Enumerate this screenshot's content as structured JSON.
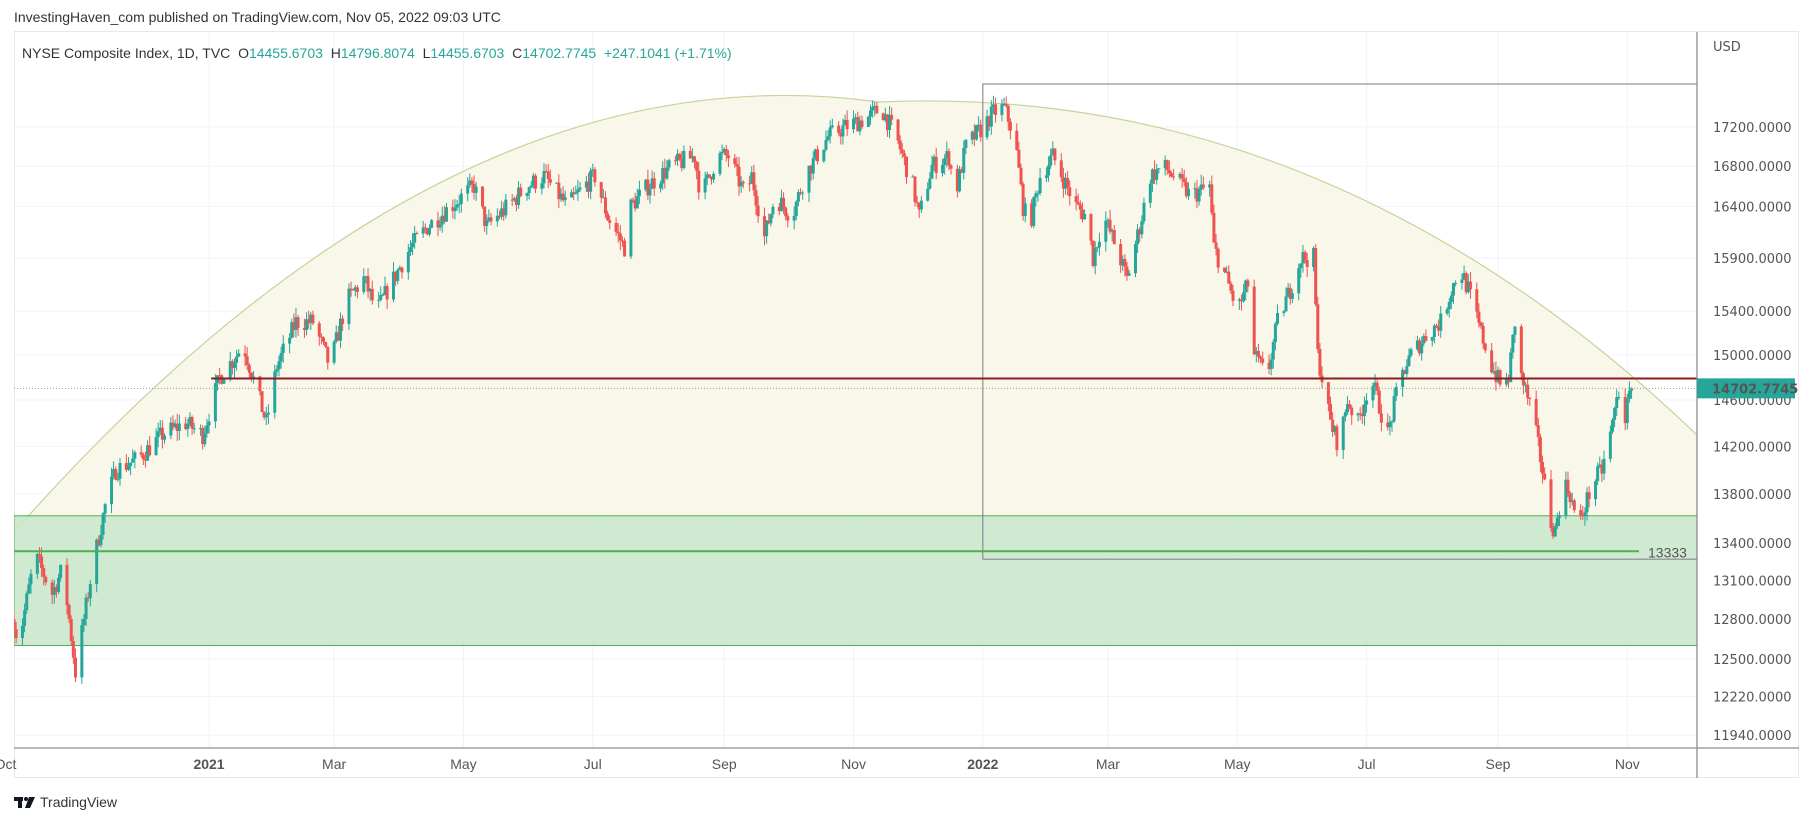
{
  "header": {
    "published": "InvestingHaven_com published on TradingView.com, Nov 05, 2022 09:03 UTC"
  },
  "legend": {
    "symbol": "NYSE Composite Index, 1D, TVC",
    "o_label": "O",
    "o": "14455.6703",
    "h_label": "H",
    "h": "14796.8074",
    "l_label": "L",
    "l": "14455.6703",
    "c_label": "C",
    "c": "14702.7745",
    "change": "+247.1041 (+1.71%)"
  },
  "footer": {
    "brand": "TradingView"
  },
  "colors": {
    "up": "#26a69a",
    "down": "#ef5350",
    "zone": "#c8e6c9",
    "zone_line": "#4caf50",
    "resistance": "#8b1e1e",
    "arc_fill": "#f8f7ea",
    "arc_line": "#c5d49a"
  },
  "chart_data": {
    "type": "candlestick",
    "title": "NYSE Composite Index, 1D, TVC",
    "currency": "USD",
    "x_unit": "trading days offset from 2020-10-01",
    "yscale": "log",
    "ylim": [
      11850,
      17750
    ],
    "y_ticks": [
      "17200.0000",
      "16800.0000",
      "16400.0000",
      "15900.0000",
      "15400.0000",
      "15000.0000",
      "14600.0000",
      "14200.0000",
      "13800.0000",
      "13400.0000",
      "13100.0000",
      "12800.0000",
      "12500.0000",
      "12220.0000",
      "11940.0000"
    ],
    "x_ticks": [
      {
        "label": "Oct",
        "day": -4,
        "bold": false
      },
      {
        "label": "2021",
        "day": 92,
        "bold": true
      },
      {
        "label": "Mar",
        "day": 151,
        "bold": false
      },
      {
        "label": "May",
        "day": 212,
        "bold": false
      },
      {
        "label": "Jul",
        "day": 273,
        "bold": false
      },
      {
        "label": "Sep",
        "day": 335,
        "bold": false
      },
      {
        "label": "Nov",
        "day": 396,
        "bold": false
      },
      {
        "label": "2022",
        "day": 457,
        "bold": true
      },
      {
        "label": "Mar",
        "day": 516,
        "bold": false
      },
      {
        "label": "May",
        "day": 577,
        "bold": false
      },
      {
        "label": "Jul",
        "day": 638,
        "bold": false
      },
      {
        "label": "Sep",
        "day": 700,
        "bold": false
      },
      {
        "label": "Nov",
        "day": 761,
        "bold": false
      }
    ],
    "close_path": [
      [
        0,
        12800
      ],
      [
        2,
        12600
      ],
      [
        10,
        13300
      ],
      [
        18,
        13000
      ],
      [
        23,
        13200
      ],
      [
        29,
        12400
      ],
      [
        34,
        12900
      ],
      [
        37,
        13200
      ],
      [
        43,
        13700
      ],
      [
        48,
        14000
      ],
      [
        59,
        14100
      ],
      [
        70,
        14300
      ],
      [
        81,
        14400
      ],
      [
        89,
        14300
      ],
      [
        97,
        14800
      ],
      [
        105,
        15000
      ],
      [
        108,
        15100
      ],
      [
        119,
        14400
      ],
      [
        124,
        14900
      ],
      [
        133,
        15300
      ],
      [
        141,
        15300
      ],
      [
        149,
        14900
      ],
      [
        157,
        15500
      ],
      [
        165,
        15700
      ],
      [
        171,
        15400
      ],
      [
        179,
        15700
      ],
      [
        187,
        16000
      ],
      [
        195,
        16200
      ],
      [
        206,
        16400
      ],
      [
        217,
        16600
      ],
      [
        223,
        16200
      ],
      [
        233,
        16400
      ],
      [
        242,
        16600
      ],
      [
        250,
        16700
      ],
      [
        261,
        16400
      ],
      [
        269,
        16600
      ],
      [
        274,
        16700
      ],
      [
        280,
        16300
      ],
      [
        288,
        16000
      ],
      [
        291,
        16400
      ],
      [
        299,
        16600
      ],
      [
        310,
        16800
      ],
      [
        321,
        16900
      ],
      [
        324,
        16500
      ],
      [
        332,
        16900
      ],
      [
        337,
        16900
      ],
      [
        345,
        16500
      ],
      [
        348,
        16700
      ],
      [
        354,
        16100
      ],
      [
        359,
        16500
      ],
      [
        367,
        16300
      ],
      [
        373,
        16700
      ],
      [
        384,
        17100
      ],
      [
        392,
        17200
      ],
      [
        403,
        17300
      ],
      [
        409,
        17400
      ],
      [
        416,
        17100
      ],
      [
        424,
        16600
      ],
      [
        427,
        16300
      ],
      [
        433,
        16800
      ],
      [
        441,
        16900
      ],
      [
        444,
        16500
      ],
      [
        449,
        17000
      ],
      [
        457,
        17200
      ],
      [
        462,
        17350
      ],
      [
        467,
        17400
      ],
      [
        472,
        17100
      ],
      [
        476,
        16400
      ],
      [
        479,
        16200
      ],
      [
        484,
        16700
      ],
      [
        490,
        16900
      ],
      [
        501,
        16400
      ],
      [
        506,
        16300
      ],
      [
        509,
        15900
      ],
      [
        514,
        16300
      ],
      [
        520,
        16000
      ],
      [
        525,
        15700
      ],
      [
        531,
        16200
      ],
      [
        536,
        16700
      ],
      [
        542,
        16800
      ],
      [
        547,
        16700
      ],
      [
        555,
        16500
      ],
      [
        564,
        16600
      ],
      [
        566,
        16000
      ],
      [
        572,
        15700
      ],
      [
        577,
        15400
      ],
      [
        583,
        15700
      ],
      [
        585,
        15000
      ],
      [
        591,
        14800
      ],
      [
        596,
        15300
      ],
      [
        602,
        15600
      ],
      [
        607,
        15900
      ],
      [
        613,
        15900
      ],
      [
        615,
        15000
      ],
      [
        621,
        14400
      ],
      [
        625,
        14200
      ],
      [
        629,
        14600
      ],
      [
        634,
        14400
      ],
      [
        640,
        14800
      ],
      [
        648,
        14300
      ],
      [
        654,
        14800
      ],
      [
        659,
        15000
      ],
      [
        667,
        15200
      ],
      [
        673,
        15300
      ],
      [
        678,
        15600
      ],
      [
        682,
        15800
      ],
      [
        686,
        15600
      ],
      [
        692,
        15200
      ],
      [
        697,
        14900
      ],
      [
        702,
        14700
      ],
      [
        705,
        14800
      ],
      [
        708,
        15300
      ],
      [
        711,
        14800
      ],
      [
        716,
        14500
      ],
      [
        721,
        14000
      ],
      [
        724,
        13600
      ],
      [
        727,
        13500
      ],
      [
        731,
        13900
      ],
      [
        734,
        13800
      ],
      [
        738,
        13500
      ],
      [
        741,
        13700
      ],
      [
        745,
        13900
      ],
      [
        749,
        14000
      ],
      [
        753,
        14300
      ],
      [
        756,
        14600
      ],
      [
        758,
        14750
      ],
      [
        760,
        14456
      ],
      [
        763,
        14702.7745
      ]
    ],
    "last_price": "14702.7745",
    "annotations": {
      "support_level": 13333,
      "support_label": "13333",
      "support_zone": [
        12600,
        13620
      ],
      "resistance_level": 14790,
      "rectangle": {
        "day_start": 457,
        "price_top": 17650,
        "price_bottom": 13270
      }
    }
  }
}
